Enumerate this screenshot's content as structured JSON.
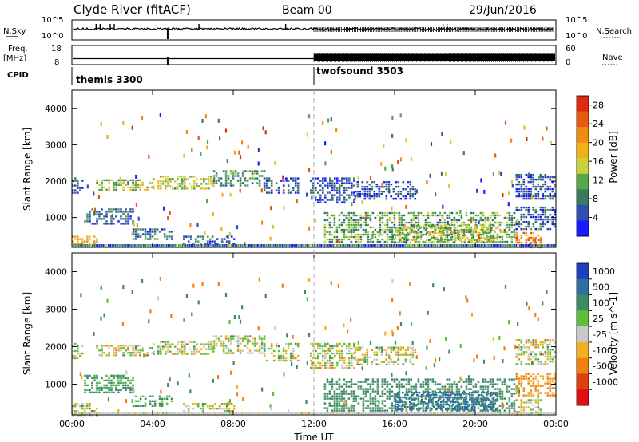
{
  "header": {
    "title": "Clyde River (fitACF)",
    "beam": "Beam 00",
    "date": "29/Jun/2016"
  },
  "noise_panel": {
    "left_label": "N.Sky",
    "right_label": "N.Search",
    "left_ticks": [
      "10^5",
      "10^0"
    ],
    "right_ticks": [
      "10^5",
      "10^0"
    ]
  },
  "freq_panel": {
    "left_label_1": "Freq.",
    "left_label_2": "[MHz]",
    "right_label": "Nave",
    "left_ticks": [
      "18",
      "8"
    ],
    "right_ticks": [
      "60",
      "0"
    ]
  },
  "cpid_panel": {
    "label": "CPID",
    "programs": [
      {
        "name": "themis 3300",
        "start_hour": 0
      },
      {
        "name": "twofsound 3503",
        "start_hour": 12
      }
    ]
  },
  "axes": {
    "ylabel": "Slant Range [km]",
    "xlabel": "Time UT",
    "y_ticks": [
      "1000",
      "2000",
      "3000",
      "4000"
    ],
    "x_ticks": [
      "00:00",
      "04:00",
      "08:00",
      "12:00",
      "16:00",
      "20:00",
      "00:00"
    ]
  },
  "chart_data": [
    {
      "type": "heatmap",
      "name": "power",
      "x": "Time UT (hours, 00:00 to 24:00)",
      "ylim_km": [
        180,
        4500
      ],
      "xlim_hours": [
        0,
        24
      ],
      "colorbar": {
        "label": "Power [dB]",
        "ticks": [
          "4",
          "8",
          "12",
          "16",
          "20",
          "24",
          "28"
        ],
        "range": [
          0,
          30
        ],
        "colors": [
          "#1a1aff",
          "#2f4fb0",
          "#3c7a5e",
          "#56a64a",
          "#c9d23c",
          "#f0b018",
          "#f08a10",
          "#e85a10",
          "#e02a10"
        ]
      },
      "regions": [
        {
          "t": [
            0,
            0.5
          ],
          "r": [
            1700,
            2100
          ],
          "level": 4
        },
        {
          "t": [
            1.2,
            4
          ],
          "r": [
            1750,
            2050
          ],
          "level": 13
        },
        {
          "t": [
            4,
            7
          ],
          "r": [
            1800,
            2150
          ],
          "level": 14
        },
        {
          "t": [
            7,
            9.5
          ],
          "r": [
            1850,
            2300
          ],
          "level": 9
        },
        {
          "t": [
            9.5,
            11.2
          ],
          "r": [
            1650,
            2100
          ],
          "level": 5
        },
        {
          "t": [
            0.6,
            3
          ],
          "r": [
            800,
            1250
          ],
          "level": 6
        },
        {
          "t": [
            0,
            1.2
          ],
          "r": [
            180,
            500
          ],
          "level": 20
        },
        {
          "t": [
            3,
            5
          ],
          "r": [
            400,
            700
          ],
          "level": 7
        },
        {
          "t": [
            5.5,
            8
          ],
          "r": [
            250,
            500
          ],
          "level": 6
        },
        {
          "t": [
            11.8,
            14
          ],
          "r": [
            1400,
            2100
          ],
          "level": 4
        },
        {
          "t": [
            14,
            17
          ],
          "r": [
            1500,
            2000
          ],
          "level": 5
        },
        {
          "t": [
            12.5,
            22
          ],
          "r": [
            300,
            1150
          ],
          "level": 11
        },
        {
          "t": [
            16,
            21
          ],
          "r": [
            300,
            800
          ],
          "level": 14
        },
        {
          "t": [
            22,
            24
          ],
          "r": [
            1500,
            2200
          ],
          "level": 5
        },
        {
          "t": [
            22,
            24
          ],
          "r": [
            700,
            1300
          ],
          "level": 6
        },
        {
          "t": [
            22,
            23.2
          ],
          "r": [
            180,
            600
          ],
          "level": 22
        }
      ]
    },
    {
      "type": "heatmap",
      "name": "velocity",
      "xlim_hours": [
        0,
        24
      ],
      "ylim_km": [
        180,
        4500
      ],
      "colorbar": {
        "label": "Velocity [m s^-1]",
        "ticks": [
          "1000",
          "500",
          "100",
          "25",
          "-25",
          "-100",
          "-500",
          "-1000"
        ],
        "colors": [
          "#1e40c0",
          "#2f6fa0",
          "#3f8a66",
          "#5cbf3c",
          "#c8c8c8",
          "#f0b020",
          "#f08010",
          "#e04010",
          "#e01010"
        ]
      },
      "regions": [
        {
          "t": [
            0,
            0.5
          ],
          "r": [
            1700,
            2100
          ],
          "value": 0
        },
        {
          "t": [
            1.2,
            4
          ],
          "r": [
            1750,
            2050
          ],
          "value": 0
        },
        {
          "t": [
            4,
            7
          ],
          "r": [
            1800,
            2150
          ],
          "value": 0
        },
        {
          "t": [
            7,
            9.5
          ],
          "r": [
            1850,
            2300
          ],
          "value": 0
        },
        {
          "t": [
            9.5,
            11.2
          ],
          "r": [
            1650,
            2100
          ],
          "value": 0
        },
        {
          "t": [
            0.6,
            3
          ],
          "r": [
            800,
            1250
          ],
          "value": 150
        },
        {
          "t": [
            0,
            1.2
          ],
          "r": [
            180,
            500
          ],
          "value": 0
        },
        {
          "t": [
            3,
            5
          ],
          "r": [
            400,
            700
          ],
          "value": 120
        },
        {
          "t": [
            5.5,
            8
          ],
          "r": [
            250,
            500
          ],
          "value": 0
        },
        {
          "t": [
            11.8,
            14
          ],
          "r": [
            1400,
            2100
          ],
          "value": 0
        },
        {
          "t": [
            14,
            17
          ],
          "r": [
            1500,
            2000
          ],
          "value": 0
        },
        {
          "t": [
            12.5,
            22
          ],
          "r": [
            300,
            1150
          ],
          "value": 250
        },
        {
          "t": [
            16,
            21
          ],
          "r": [
            300,
            800
          ],
          "value": 600
        },
        {
          "t": [
            22,
            24
          ],
          "r": [
            1500,
            2200
          ],
          "value": 0
        },
        {
          "t": [
            22,
            24
          ],
          "r": [
            700,
            1300
          ],
          "value": -150
        },
        {
          "t": [
            22,
            23.2
          ],
          "r": [
            180,
            600
          ],
          "value": 0
        }
      ]
    }
  ]
}
